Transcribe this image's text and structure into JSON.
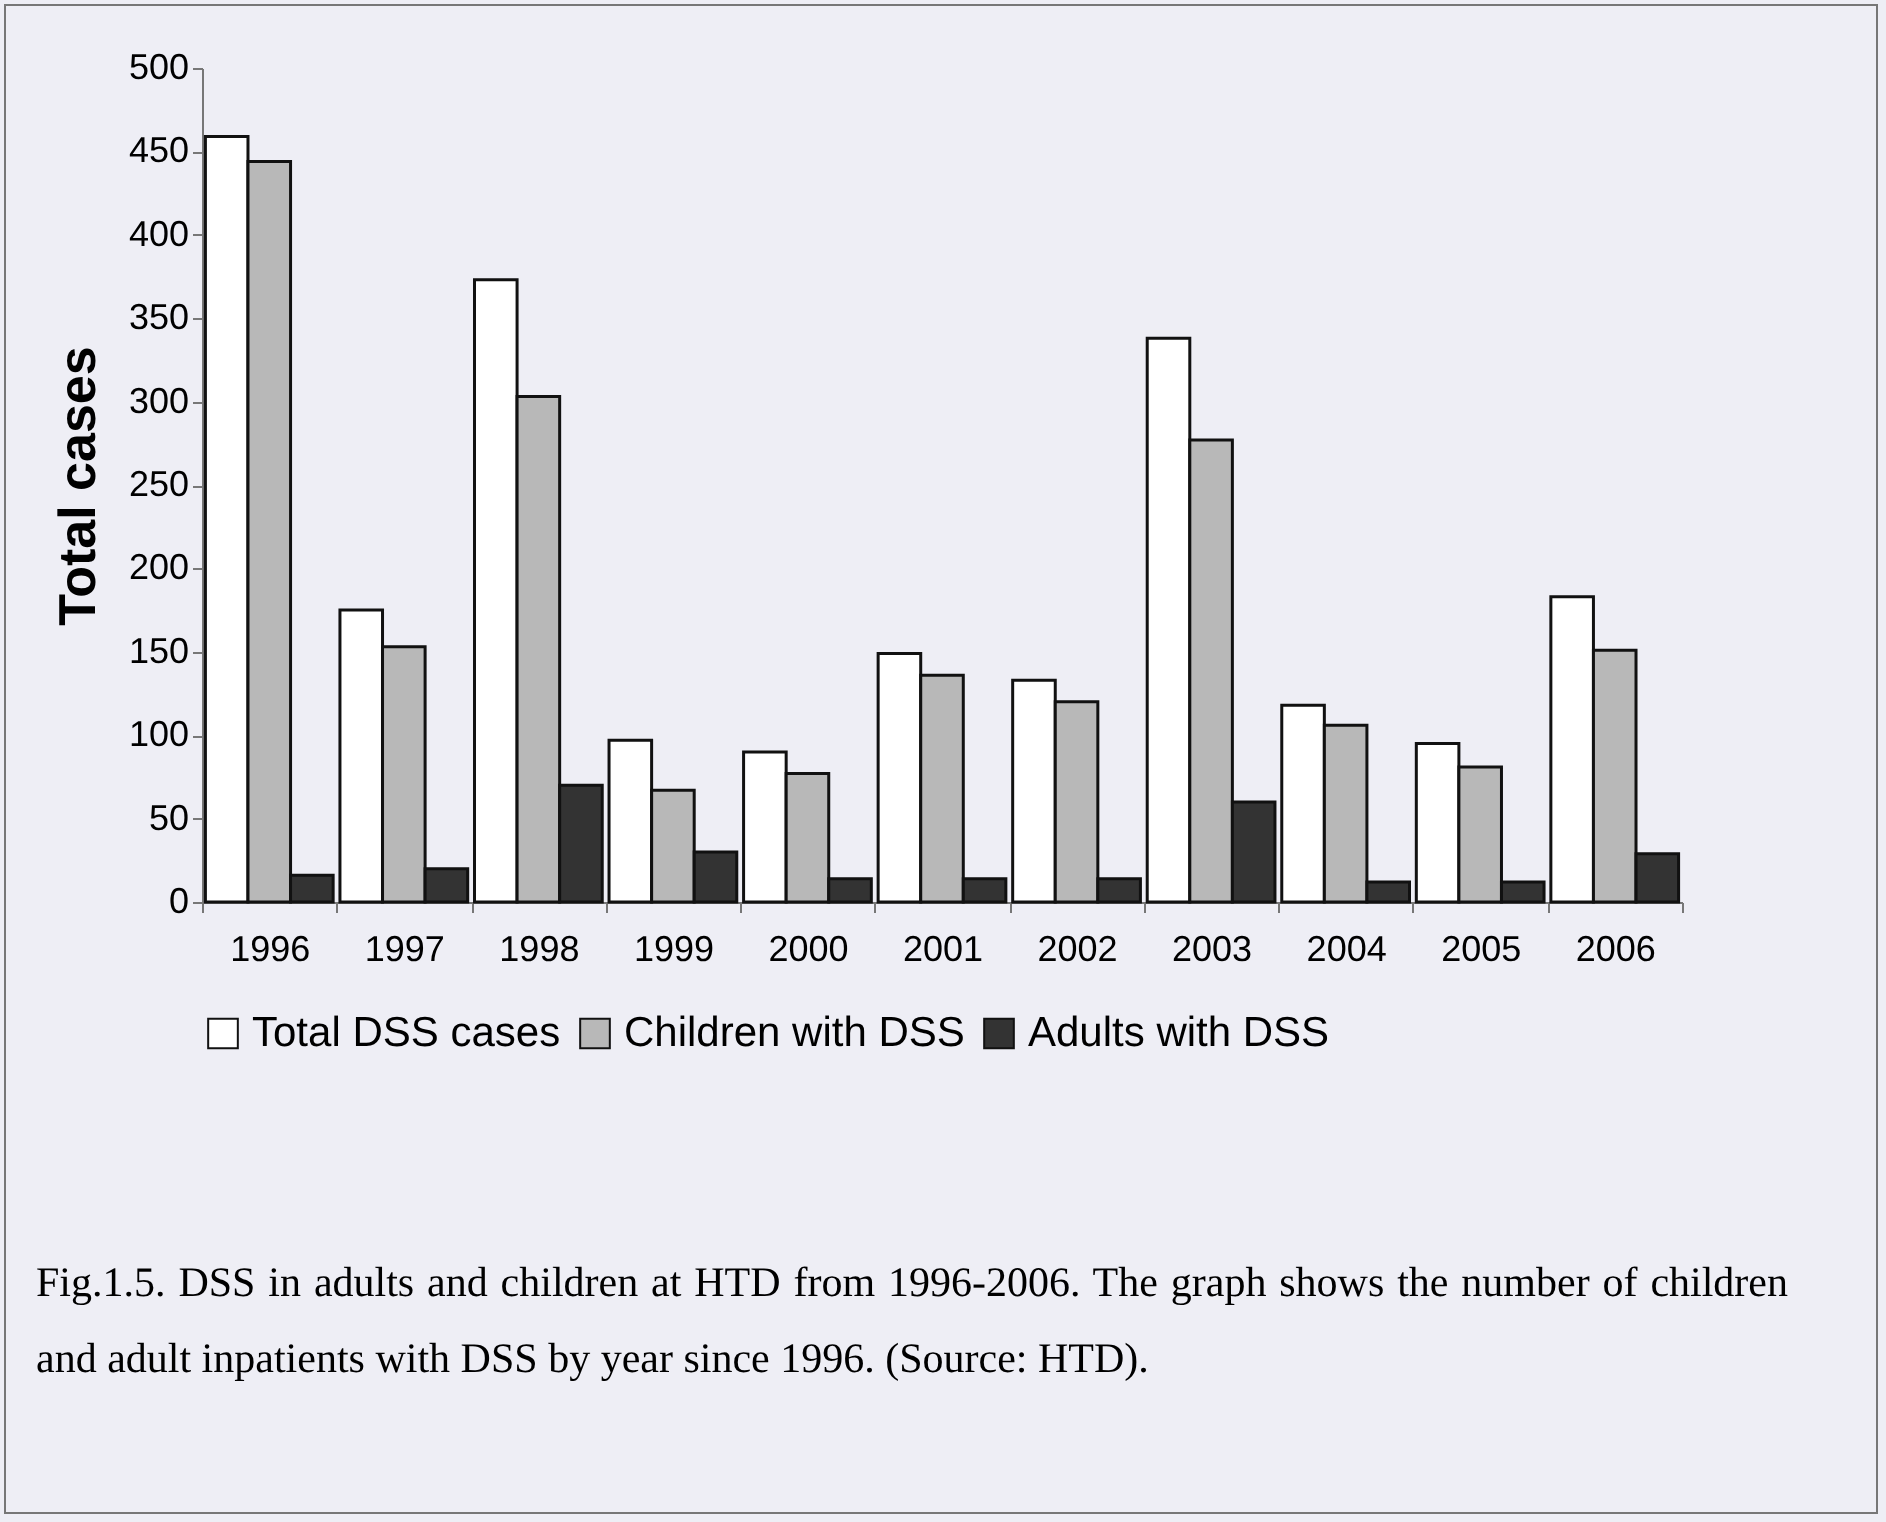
{
  "chart_data": {
    "type": "bar",
    "ylabel": "Total cases",
    "categories": [
      "1996",
      "1997",
      "1998",
      "1999",
      "2000",
      "2001",
      "2002",
      "2003",
      "2004",
      "2005",
      "2006"
    ],
    "series": [
      {
        "name": "Total DSS cases",
        "color": "#ffffff",
        "values": [
          459,
          175,
          373,
          97,
          90,
          149,
          133,
          338,
          118,
          95,
          183
        ]
      },
      {
        "name": "Children with DSS",
        "color": "#b8b8b8",
        "values": [
          444,
          153,
          303,
          67,
          77,
          136,
          120,
          277,
          106,
          81,
          151
        ]
      },
      {
        "name": "Adults with DSS",
        "color": "#333333",
        "values": [
          16,
          20,
          70,
          30,
          14,
          14,
          14,
          60,
          12,
          12,
          29
        ]
      }
    ],
    "ylim": [
      0,
      500
    ],
    "yticks": [
      0,
      50,
      100,
      150,
      200,
      250,
      300,
      350,
      400,
      450,
      500
    ],
    "grid": false,
    "legend": "bottom",
    "annotations": [
      "Fig.1.5.  DSS in adults and children at HTD from 1996-2006. The graph shows the number of children and adult inpatients with DSS by year since 1996. (Source: HTD)."
    ]
  }
}
